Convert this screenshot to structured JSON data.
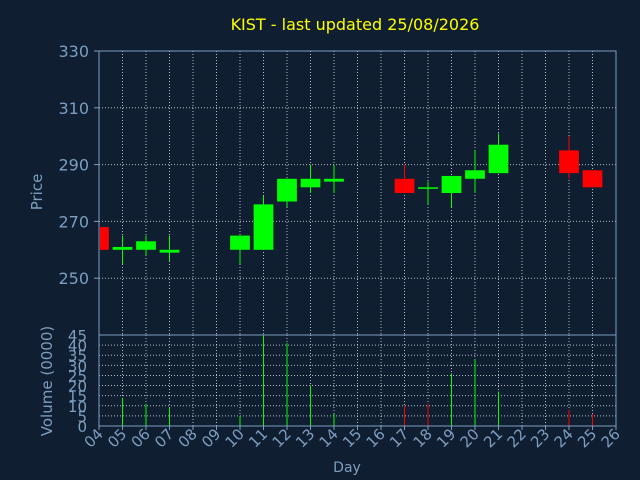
{
  "chart_data": {
    "type": "candlestick",
    "title": "KIST - last updated 25/08/2026",
    "xlabel": "Day",
    "x_ticks": [
      "04",
      "05",
      "06",
      "07",
      "08",
      "09",
      "10",
      "11",
      "12",
      "13",
      "14",
      "15",
      "16",
      "17",
      "18",
      "19",
      "20",
      "21",
      "22",
      "23",
      "24",
      "25",
      "26"
    ],
    "price_panel": {
      "ylabel": "Price",
      "ylim": [
        230,
        330
      ],
      "y_ticks": [
        250,
        270,
        290,
        310,
        330
      ],
      "candles": [
        {
          "day": 4,
          "open": 268,
          "high": 268,
          "low": 260,
          "close": 260
        },
        {
          "day": 5,
          "open": 260,
          "high": 265,
          "low": 255,
          "close": 261
        },
        {
          "day": 6,
          "open": 260,
          "high": 265,
          "low": 258,
          "close": 263
        },
        {
          "day": 7,
          "open": 259,
          "high": 265,
          "low": 256,
          "close": 260
        },
        {
          "day": 10,
          "open": 260,
          "high": 265,
          "low": 255,
          "close": 265
        },
        {
          "day": 11,
          "open": 260,
          "high": 279,
          "low": 260,
          "close": 276
        },
        {
          "day": 12,
          "open": 277,
          "high": 285,
          "low": 275,
          "close": 285
        },
        {
          "day": 13,
          "open": 282,
          "high": 290,
          "low": 280,
          "close": 285
        },
        {
          "day": 14,
          "open": 284,
          "high": 290,
          "low": 280,
          "close": 285
        },
        {
          "day": 17,
          "open": 285,
          "high": 290,
          "low": 280,
          "close": 280
        },
        {
          "day": 18,
          "open": 282,
          "high": 284,
          "low": 276,
          "close": 282
        },
        {
          "day": 19,
          "open": 280,
          "high": 286,
          "low": 275,
          "close": 286
        },
        {
          "day": 20,
          "open": 285,
          "high": 295,
          "low": 280,
          "close": 288
        },
        {
          "day": 21,
          "open": 287,
          "high": 301,
          "low": 287,
          "close": 297
        },
        {
          "day": 24,
          "open": 295,
          "high": 300,
          "low": 285,
          "close": 287
        },
        {
          "day": 25,
          "open": 288,
          "high": 288,
          "low": 282,
          "close": 282
        }
      ],
      "up_color": "#00ff00",
      "down_color": "#ff0000"
    },
    "volume_panel": {
      "ylabel": "Volume (0000)",
      "ylim": [
        0,
        45
      ],
      "y_ticks": [
        0,
        5,
        10,
        15,
        20,
        25,
        30,
        35,
        40,
        45
      ],
      "bars": [
        {
          "day": 5,
          "value": 14,
          "color": "#00ff00"
        },
        {
          "day": 6,
          "value": 11,
          "color": "#00ff00"
        },
        {
          "day": 7,
          "value": 9,
          "color": "#00ff00"
        },
        {
          "day": 10,
          "value": 5,
          "color": "#00ff00"
        },
        {
          "day": 11,
          "value": 45,
          "color": "#00ff00"
        },
        {
          "day": 12,
          "value": 41,
          "color": "#00ff00"
        },
        {
          "day": 13,
          "value": 20,
          "color": "#00ff00"
        },
        {
          "day": 14,
          "value": 6,
          "color": "#00ff00"
        },
        {
          "day": 17,
          "value": 10,
          "color": "#ff0000"
        },
        {
          "day": 18,
          "value": 11,
          "color": "#ff0000"
        },
        {
          "day": 19,
          "value": 26,
          "color": "#00ff00"
        },
        {
          "day": 20,
          "value": 33,
          "color": "#00ff00"
        },
        {
          "day": 21,
          "value": 17,
          "color": "#00ff00"
        },
        {
          "day": 24,
          "value": 8,
          "color": "#ff0000"
        },
        {
          "day": 25,
          "value": 6,
          "color": "#ff0000"
        }
      ]
    },
    "grid": true,
    "colors": {
      "background": "#0f1f31",
      "axis": "#7d9ec0",
      "title": "#ffff00",
      "label": "#7d9ec0",
      "grid": "#ffffff"
    }
  }
}
